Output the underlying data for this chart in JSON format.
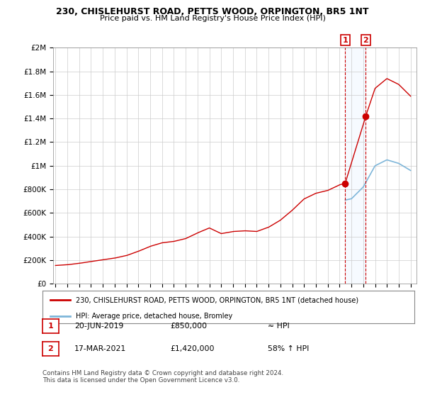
{
  "title_line1": "230, CHISLEHURST ROAD, PETTS WOOD, ORPINGTON, BR5 1NT",
  "title_line2": "Price paid vs. HM Land Registry's House Price Index (HPI)",
  "ylabel_ticks": [
    "£0",
    "£200K",
    "£400K",
    "£600K",
    "£800K",
    "£1M",
    "£1.2M",
    "£1.4M",
    "£1.6M",
    "£1.8M",
    "£2M"
  ],
  "ytick_values": [
    0,
    200000,
    400000,
    600000,
    800000,
    1000000,
    1200000,
    1400000,
    1600000,
    1800000,
    2000000
  ],
  "x_start_year": 1995,
  "x_end_year": 2025,
  "hpi_color": "#7eb6d9",
  "price_color": "#cc0000",
  "dashed_color": "#cc0000",
  "shade_color": "#ddeeff",
  "legend_label1": "230, CHISLEHURST ROAD, PETTS WOOD, ORPINGTON, BR5 1NT (detached house)",
  "legend_label2": "HPI: Average price, detached house, Bromley",
  "sale1_year": 2019.47,
  "sale1_price": 850000,
  "sale2_year": 2021.21,
  "sale2_price": 1420000,
  "footnote": "Contains HM Land Registry data © Crown copyright and database right 2024.\nThis data is licensed under the Open Government Licence v3.0.",
  "table_row1": [
    "1",
    "20-JUN-2019",
    "£850,000",
    "≈ HPI"
  ],
  "table_row2": [
    "2",
    "17-MAR-2021",
    "£1,420,000",
    "58% ↑ HPI"
  ],
  "bg_color": "#ffffff"
}
